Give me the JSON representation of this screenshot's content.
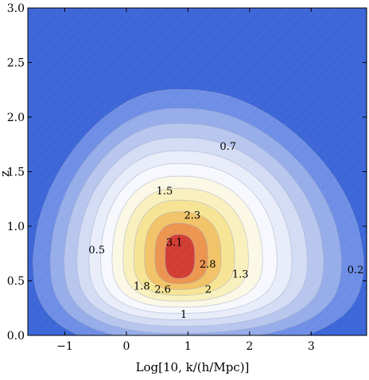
{
  "chart_data": {
    "type": "contour",
    "title": "",
    "xlabel": "Log[10, k/(h/Mpc)]",
    "ylabel": "z",
    "xlim": [
      -1.6,
      3.9
    ],
    "ylim": [
      0.0,
      3.0
    ],
    "x_ticks": [
      "−1",
      "0",
      "1",
      "2",
      "3"
    ],
    "x_tick_values": [
      -1,
      0,
      1,
      2,
      3
    ],
    "y_ticks": [
      "0.0",
      "0.5",
      "1.0",
      "1.5",
      "2.0",
      "2.5",
      "3.0"
    ],
    "y_tick_values": [
      0.0,
      0.5,
      1.0,
      1.5,
      2.0,
      2.5,
      3.0
    ],
    "background_color": "#3d66d8",
    "peak": {
      "x": 0.85,
      "z": 0.72
    },
    "contour_levels": [
      0.2,
      0.5,
      0.7,
      1.0,
      1.3,
      1.5,
      1.8,
      2.0,
      2.3,
      2.6,
      2.8,
      3.1
    ],
    "level_colors": [
      "#6e8ee6",
      "#96ade9",
      "#b8c6ee",
      "#d3dcf4",
      "#e8edf9",
      "#f7f8fd",
      "#fbf8e6",
      "#f9f0be",
      "#f6e494",
      "#f2c368",
      "#ec9550",
      "#d23d33"
    ],
    "contour_labels": [
      {
        "text": "0.2",
        "x": 3.72,
        "z": 0.6
      },
      {
        "text": "0.5",
        "x": -0.48,
        "z": 0.78
      },
      {
        "text": "0.7",
        "x": 1.65,
        "z": 1.73
      },
      {
        "text": "1",
        "x": 0.93,
        "z": 0.19
      },
      {
        "text": "1.3",
        "x": 1.85,
        "z": 0.56
      },
      {
        "text": "1.5",
        "x": 0.62,
        "z": 1.32
      },
      {
        "text": "1.8",
        "x": 0.25,
        "z": 0.45
      },
      {
        "text": "2",
        "x": 1.33,
        "z": 0.42
      },
      {
        "text": "2.3",
        "x": 1.07,
        "z": 1.1
      },
      {
        "text": "2.6",
        "x": 0.59,
        "z": 0.42
      },
      {
        "text": "2.8",
        "x": 1.32,
        "z": 0.65
      },
      {
        "text": "3.1",
        "x": 0.78,
        "z": 0.85
      }
    ]
  }
}
